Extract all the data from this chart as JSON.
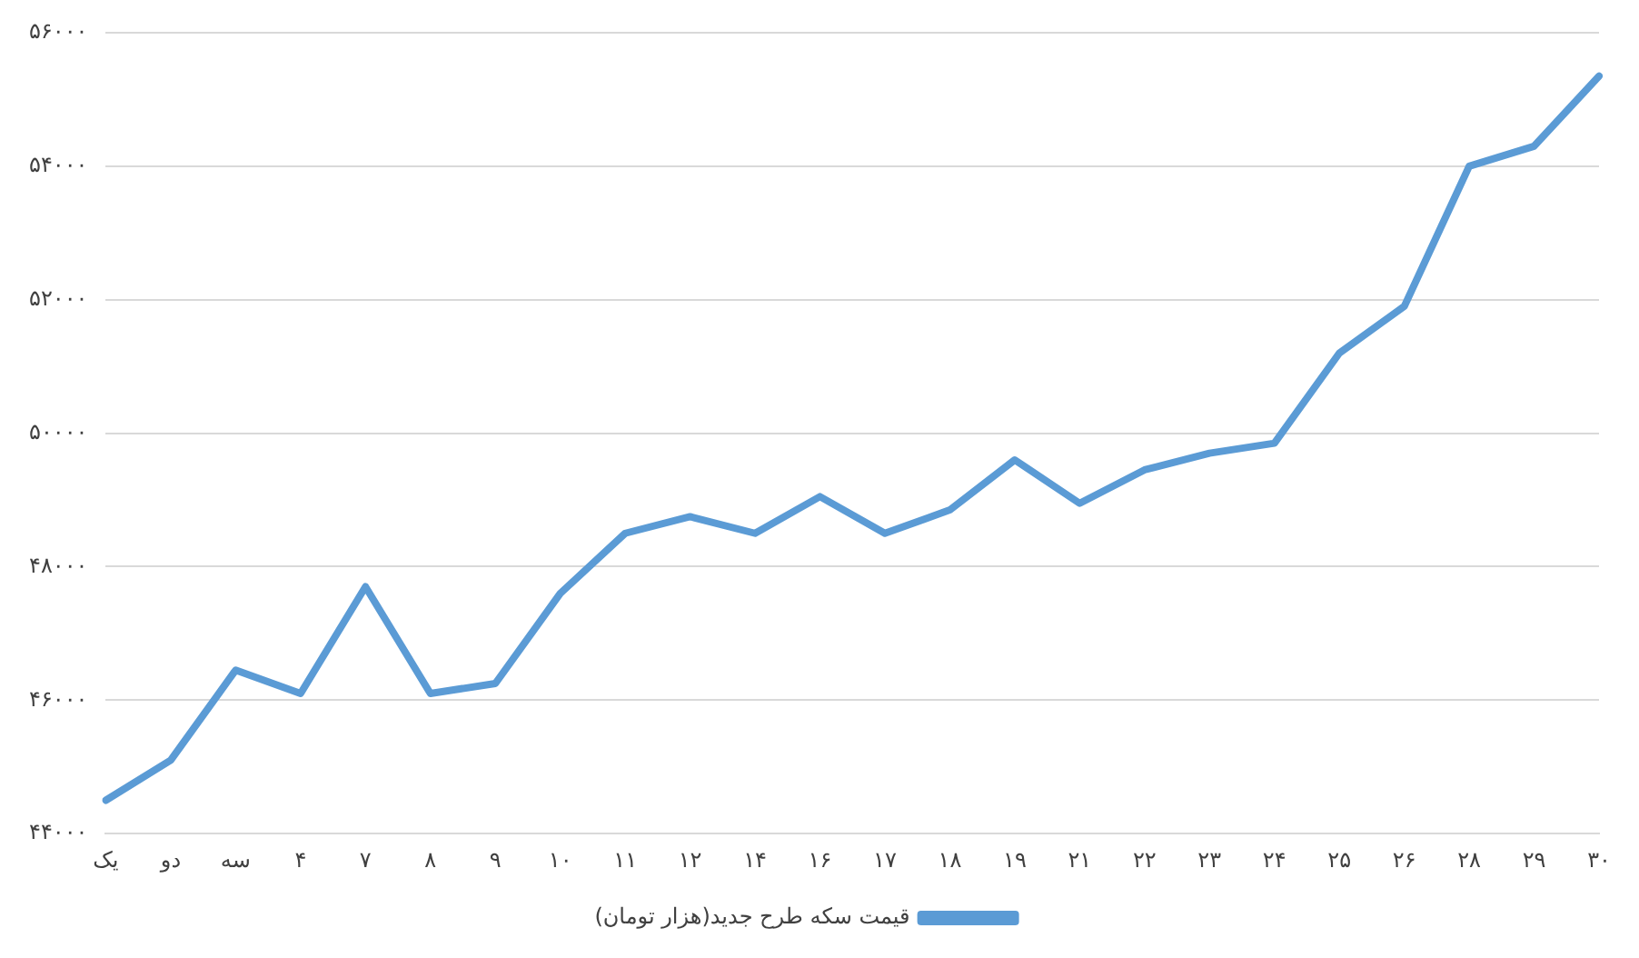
{
  "chart_data": {
    "type": "line",
    "categories": [
      "یک",
      "دو",
      "سه",
      "۴",
      "۷",
      "۸",
      "۹",
      "۱۰",
      "۱۱",
      "۱۲",
      "۱۴",
      "۱۶",
      "۱۷",
      "۱۸",
      "۱۹",
      "۲۱",
      "۲۲",
      "۲۳",
      "۲۴",
      "۲۵",
      "۲۶",
      "۲۸",
      "۲۹",
      "۳۰"
    ],
    "series": [
      {
        "name": "قیمت سکه طرح جدید(هزار تومان)",
        "color": "#5b9bd5",
        "values": [
          44500,
          45100,
          46450,
          46100,
          47700,
          46100,
          46250,
          47600,
          48500,
          48750,
          48500,
          49050,
          48500,
          48850,
          49600,
          48950,
          49450,
          49700,
          49850,
          51200,
          51900,
          54000,
          54300,
          55350
        ]
      }
    ],
    "ylim": [
      44000,
      56000
    ],
    "yticks": [
      {
        "value": 44000,
        "label": "۴۴۰۰۰"
      },
      {
        "value": 46000,
        "label": "۴۶۰۰۰"
      },
      {
        "value": 48000,
        "label": "۴۸۰۰۰"
      },
      {
        "value": 50000,
        "label": "۵۰۰۰۰"
      },
      {
        "value": 52000,
        "label": "۵۲۰۰۰"
      },
      {
        "value": 54000,
        "label": "۵۴۰۰۰"
      },
      {
        "value": 56000,
        "label": "۵۶۰۰۰"
      }
    ],
    "grid": "y",
    "legend": "bottom",
    "marker": "none",
    "line_style": "solid"
  }
}
